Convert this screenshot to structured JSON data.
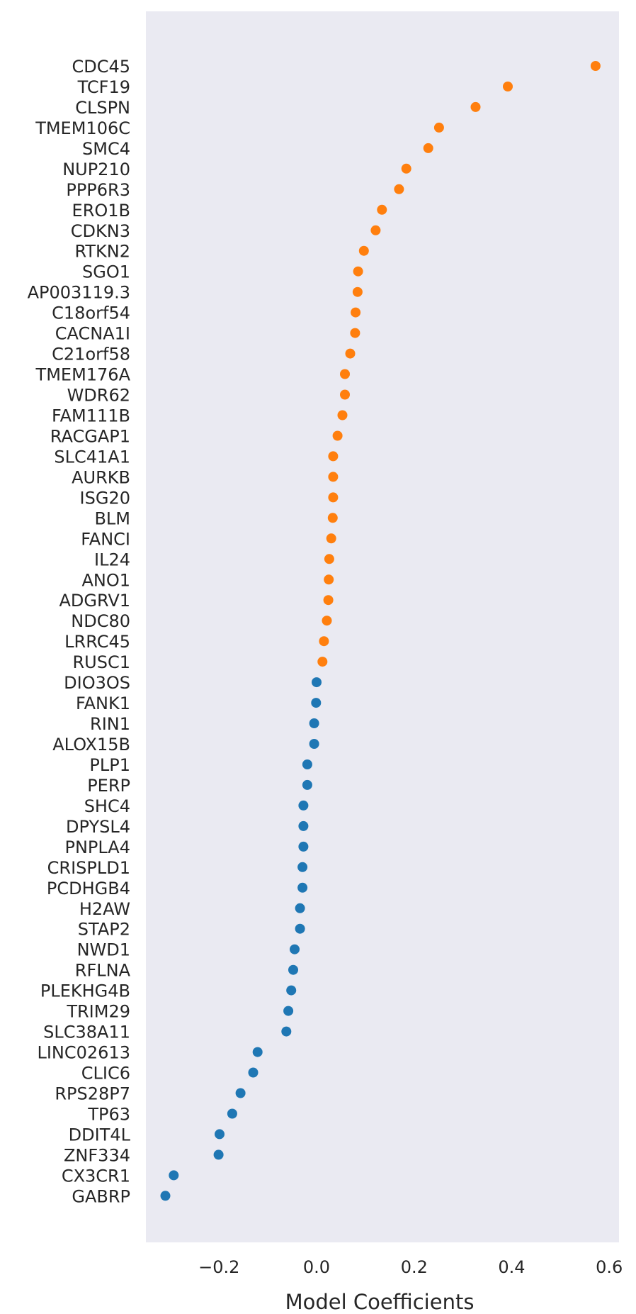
{
  "chart_data": {
    "type": "scatter",
    "xlabel": "Model Coefficients",
    "ylabel": "",
    "xlim": [
      -0.35,
      0.62
    ],
    "xticks": [
      -0.2,
      0.0,
      0.2,
      0.4,
      0.6
    ],
    "xtick_labels": [
      "−0.2",
      "0.0",
      "0.2",
      "0.4",
      "0.6"
    ],
    "grid": false,
    "colors": {
      "positive": "#ff7f0e",
      "negative": "#1f77b4",
      "plot_bg": "#eaeaf2"
    },
    "categories": [
      "CDC45",
      "TCF19",
      "CLSPN",
      "TMEM106C",
      "SMC4",
      "NUP210",
      "PPP6R3",
      "ERO1B",
      "CDKN3",
      "RTKN2",
      "SGO1",
      "AP003119.3",
      "C18orf54",
      "CACNA1I",
      "C21orf58",
      "TMEM176A",
      "WDR62",
      "FAM111B",
      "RACGAP1",
      "SLC41A1",
      "AURKB",
      "ISG20",
      "BLM",
      "FANCI",
      "IL24",
      "ANO1",
      "ADGRV1",
      "NDC80",
      "LRRC45",
      "RUSC1",
      "DIO3OS",
      "FANK1",
      "RIN1",
      "ALOX15B",
      "PLP1",
      "PERP",
      "SHC4",
      "DPYSL4",
      "PNPLA4",
      "CRISPLD1",
      "PCDHGB4",
      "H2AW",
      "STAP2",
      "NWD1",
      "RFLNA",
      "PLEKHG4B",
      "TRIM29",
      "SLC38A11",
      "LINC02613",
      "CLIC6",
      "RPS28P7",
      "TP63",
      "DDIT4L",
      "ZNF334",
      "CX3CR1",
      "GABRP"
    ],
    "values": [
      0.572,
      0.392,
      0.326,
      0.251,
      0.229,
      0.184,
      0.169,
      0.134,
      0.121,
      0.097,
      0.085,
      0.084,
      0.08,
      0.079,
      0.069,
      0.058,
      0.058,
      0.053,
      0.043,
      0.034,
      0.034,
      0.034,
      0.033,
      0.03,
      0.026,
      0.025,
      0.024,
      0.021,
      0.015,
      0.012,
      0.0,
      -0.001,
      -0.005,
      -0.005,
      -0.019,
      -0.019,
      -0.027,
      -0.027,
      -0.027,
      -0.029,
      -0.029,
      -0.034,
      -0.034,
      -0.045,
      -0.048,
      -0.052,
      -0.058,
      -0.062,
      -0.121,
      -0.13,
      -0.156,
      -0.173,
      -0.199,
      -0.201,
      -0.293,
      -0.31
    ]
  }
}
